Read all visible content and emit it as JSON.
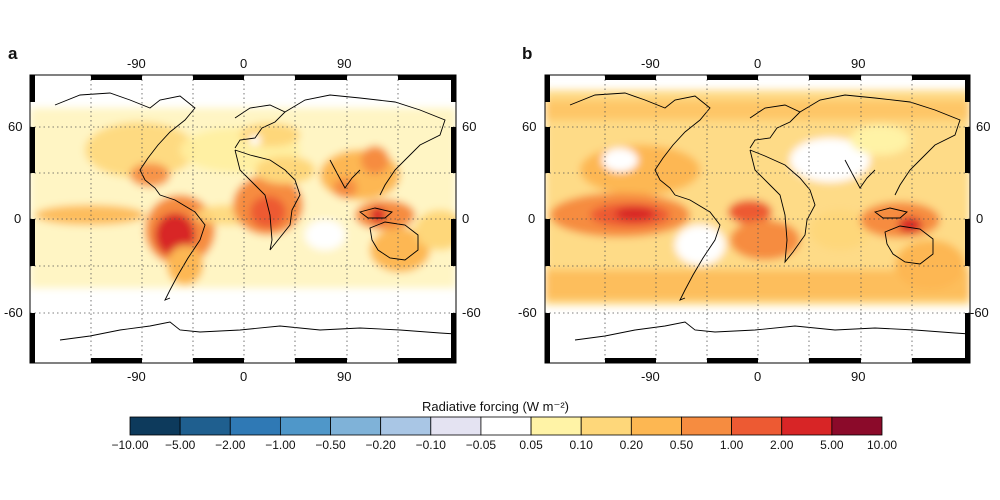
{
  "panels": [
    {
      "label": "a",
      "x_top_ticks": [
        "-90",
        "0",
        "90"
      ],
      "x_bottom_ticks": [
        "-90",
        "0",
        "90"
      ],
      "y_left_ticks": [
        "60",
        "0",
        "-60"
      ],
      "y_right_ticks": [
        "60",
        "0",
        "-60"
      ],
      "hotspots": [
        {
          "name": "south-america",
          "level": 5
        },
        {
          "name": "central-africa",
          "level": 4
        },
        {
          "name": "maritime-continent",
          "level": 4
        },
        {
          "name": "india-southeast-asia",
          "level": 3
        },
        {
          "name": "gulf-of-mexico",
          "level": 3
        }
      ]
    },
    {
      "label": "b",
      "x_top_ticks": [
        "-90",
        "0",
        "90"
      ],
      "x_bottom_ticks": [
        "-90",
        "0",
        "90"
      ],
      "y_left_ticks": [
        "60",
        "0",
        "-60"
      ],
      "y_right_ticks": [
        "60",
        "0",
        "-60"
      ],
      "hotspots": [
        {
          "name": "eastern-pacific",
          "level": 5
        },
        {
          "name": "gulf-of-guinea",
          "level": 4
        },
        {
          "name": "new-guinea",
          "level": 4
        },
        {
          "name": "southern-ocean-band",
          "level": 2
        }
      ]
    }
  ],
  "colorbar": {
    "title": "Radiative forcing (W m⁻²)",
    "ticks": [
      "−10.00",
      "−5.00",
      "−2.00",
      "−1.00",
      "−0.50",
      "−0.20",
      "−0.10",
      "−0.05",
      "0.05",
      "0.10",
      "0.20",
      "0.50",
      "1.00",
      "2.00",
      "5.00",
      "10.00"
    ],
    "colors": [
      "#0d3a5c",
      "#1f5f8f",
      "#2f79b5",
      "#4f97c9",
      "#7fb2d8",
      "#a9c6e5",
      "#e4e3f2",
      "#ffffff",
      "#fff3a6",
      "#fed77a",
      "#fdb752",
      "#f68c40",
      "#ed5a33",
      "#d82526",
      "#8b0a2a"
    ]
  }
}
